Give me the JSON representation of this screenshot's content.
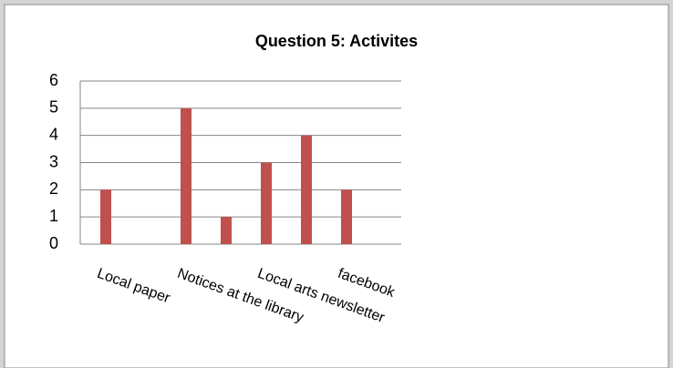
{
  "chart_data": {
    "type": "bar",
    "title": "Question 5: Activites",
    "categories": [
      "Local paper",
      null,
      "Notices at the library",
      null,
      "Local arts newsletter",
      null,
      "facebook",
      null
    ],
    "values": [
      2,
      0,
      5,
      1,
      3,
      4,
      2,
      0
    ],
    "color": "#c0504d",
    "ylim": [
      0,
      6
    ],
    "yticks": [
      0,
      1,
      2,
      3,
      4,
      5,
      6
    ],
    "grid": true
  }
}
